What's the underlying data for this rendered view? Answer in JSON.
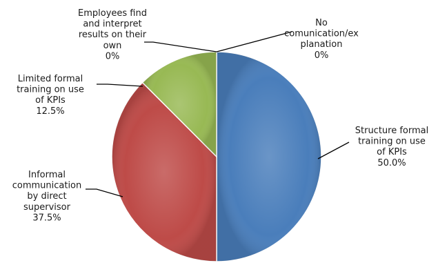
{
  "chart_data": {
    "type": "pie",
    "title": "",
    "start": "top",
    "direction": "clockwise",
    "slices": [
      {
        "label": [
          "Structure formal",
          "training on use",
          "of KPIs"
        ],
        "value": 50.0,
        "display": "50.0%",
        "color": "#4a7ebb"
      },
      {
        "label": [
          "No",
          "comunication/ex",
          "planation"
        ],
        "value": 0,
        "display": "0%",
        "color": "#6a4fa0"
      },
      {
        "label": [
          "Informal",
          "communication",
          "by direct",
          "supervisor"
        ],
        "value": 37.5,
        "display": "37.5%",
        "color": "#be4b48"
      },
      {
        "label": [
          "Limited formal",
          "training on use",
          "of KPIs"
        ],
        "value": 12.5,
        "display": "12.5%",
        "color": "#98b954"
      },
      {
        "label": [
          "Employees find",
          "and interpret",
          "results on their",
          "own"
        ],
        "value": 0,
        "display": "0%",
        "color": "#f79646"
      }
    ]
  }
}
